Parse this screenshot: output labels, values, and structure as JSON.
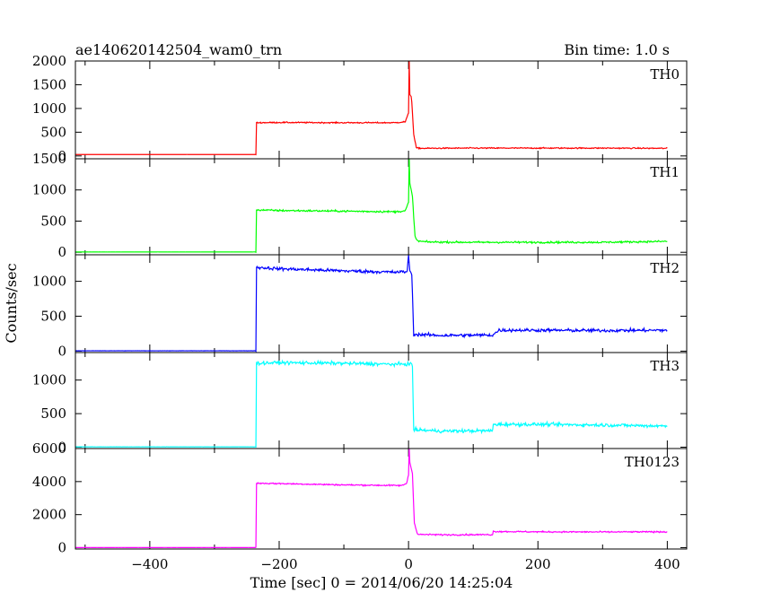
{
  "chart_data": {
    "type": "line",
    "title": "ae140620142504_wam0_trn",
    "subtitle": "Bin time: 1.0 s",
    "xlabel": "Time [sec] 0 = 2014/06/20 14:25:04",
    "ylabel": "Counts/sec",
    "xlim": [
      -515,
      430
    ],
    "xticks": [
      -400,
      -200,
      0,
      200,
      400
    ],
    "panels": [
      {
        "name": "TH0",
        "color": "#ff0000",
        "ylim": [
          -60,
          2000
        ],
        "yticks": [
          0,
          500,
          1000,
          1500,
          2000
        ],
        "points": [
          [
            -515,
            30
          ],
          [
            -236,
            30
          ],
          [
            -235,
            700
          ],
          [
            -200,
            705
          ],
          [
            -100,
            700
          ],
          [
            -20,
            700
          ],
          [
            -5,
            720
          ],
          [
            0,
            900
          ],
          [
            1,
            2000
          ],
          [
            2,
            1300
          ],
          [
            4,
            1250
          ],
          [
            5,
            1150
          ],
          [
            8,
            450
          ],
          [
            12,
            170
          ],
          [
            20,
            160
          ],
          [
            100,
            165
          ],
          [
            200,
            165
          ],
          [
            300,
            165
          ],
          [
            400,
            160
          ]
        ],
        "noise": 12
      },
      {
        "name": "TH1",
        "color": "#00ff00",
        "ylim": [
          -40,
          1500
        ],
        "yticks": [
          0,
          500,
          1000,
          1500
        ],
        "points": [
          [
            -515,
            5
          ],
          [
            -236,
            5
          ],
          [
            -235,
            680
          ],
          [
            -200,
            670
          ],
          [
            -100,
            660
          ],
          [
            -20,
            650
          ],
          [
            -5,
            665
          ],
          [
            0,
            800
          ],
          [
            1,
            1500
          ],
          [
            2,
            1100
          ],
          [
            4,
            1000
          ],
          [
            6,
            900
          ],
          [
            10,
            250
          ],
          [
            14,
            180
          ],
          [
            30,
            165
          ],
          [
            100,
            160
          ],
          [
            200,
            160
          ],
          [
            300,
            160
          ],
          [
            400,
            175
          ]
        ],
        "noise": 14
      },
      {
        "name": "TH2",
        "color": "#0000ff",
        "ylim": [
          -20,
          1380
        ],
        "yticks": [
          0,
          500,
          1000
        ],
        "points": [
          [
            -515,
            5
          ],
          [
            -236,
            5
          ],
          [
            -235,
            1200
          ],
          [
            -200,
            1180
          ],
          [
            -100,
            1150
          ],
          [
            -20,
            1130
          ],
          [
            -2,
            1140
          ],
          [
            0,
            1380
          ],
          [
            2,
            1150
          ],
          [
            5,
            1100
          ],
          [
            8,
            240
          ],
          [
            50,
            225
          ],
          [
            130,
            230
          ],
          [
            140,
            300
          ],
          [
            200,
            300
          ],
          [
            300,
            295
          ],
          [
            400,
            300
          ]
        ],
        "noise": 22
      },
      {
        "name": "TH3",
        "color": "#00ffff",
        "ylim": [
          -20,
          1410
        ],
        "yticks": [
          0,
          500,
          1000
        ],
        "points": [
          [
            -515,
            5
          ],
          [
            -236,
            5
          ],
          [
            -235,
            1250
          ],
          [
            -200,
            1260
          ],
          [
            -100,
            1250
          ],
          [
            -20,
            1235
          ],
          [
            5,
            1240
          ],
          [
            6,
            1200
          ],
          [
            8,
            260
          ],
          [
            50,
            240
          ],
          [
            130,
            245
          ],
          [
            131,
            340
          ],
          [
            200,
            340
          ],
          [
            300,
            330
          ],
          [
            400,
            315
          ]
        ],
        "noise": 24
      },
      {
        "name": "TH0123",
        "color": "#ff00ff",
        "ylim": [
          -80,
          6000
        ],
        "yticks": [
          0,
          2000,
          4000,
          6000
        ],
        "points": [
          [
            -515,
            10
          ],
          [
            -236,
            10
          ],
          [
            -235,
            3900
          ],
          [
            -200,
            3880
          ],
          [
            -100,
            3800
          ],
          [
            -10,
            3760
          ],
          [
            -3,
            3900
          ],
          [
            0,
            4400
          ],
          [
            1,
            6000
          ],
          [
            2,
            5200
          ],
          [
            4,
            4800
          ],
          [
            6,
            4500
          ],
          [
            9,
            1500
          ],
          [
            14,
            800
          ],
          [
            60,
            780
          ],
          [
            130,
            790
          ],
          [
            131,
            980
          ],
          [
            200,
            960
          ],
          [
            300,
            950
          ],
          [
            400,
            960
          ]
        ],
        "noise": 40
      }
    ]
  }
}
